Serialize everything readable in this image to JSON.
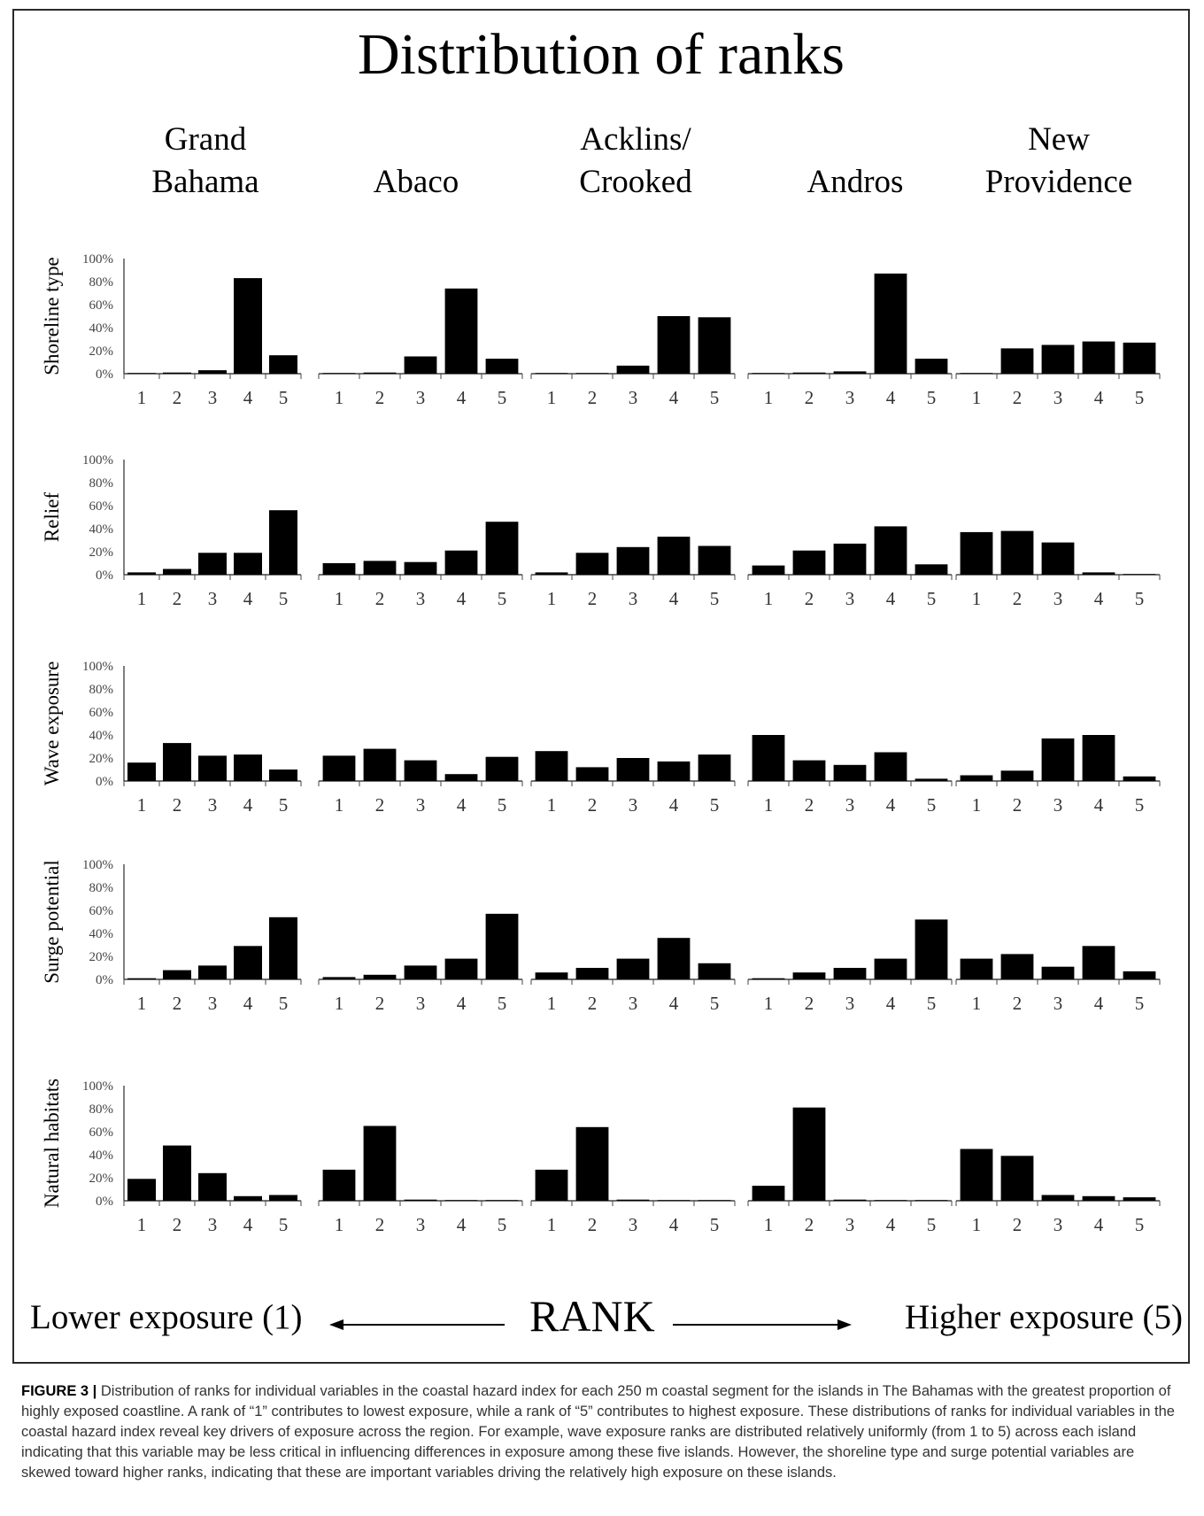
{
  "title": "Distribution of ranks",
  "footer": {
    "lower": "Lower exposure (1)",
    "rank": "RANK",
    "higher": "Higher exposure (5)"
  },
  "caption": {
    "label": "FIGURE 3 |",
    "text": "Distribution of ranks for individual variables in the coastal hazard index for each 250 m coastal segment for the islands in The Bahamas with the greatest proportion of highly exposed coastline. A rank of “1” contributes to lowest exposure, while a rank of “5” contributes to highest exposure. These distributions of ranks for individual variables in the coastal hazard index reveal key drivers of exposure across the region. For example, wave exposure ranks are distributed relatively uniformly (from 1 to 5) across each island indicating that this variable may be less critical in influencing differences in exposure among these five islands. However, the shoreline type and surge potential variables are skewed toward higher ranks, indicating that these are important variables driving the relatively high exposure on these islands."
  },
  "chart_data": {
    "type": "bar",
    "islands": [
      {
        "line1": "Grand",
        "line2": "Bahama"
      },
      {
        "line1": "",
        "line2": "Abaco"
      },
      {
        "line1": "Acklins/",
        "line2": "Crooked"
      },
      {
        "line1": "",
        "line2": "Andros"
      },
      {
        "line1": "New",
        "line2": "Providence"
      }
    ],
    "categories": [
      "1",
      "2",
      "3",
      "4",
      "5"
    ],
    "yticks": [
      "100%",
      "80%",
      "60%",
      "40%",
      "20%",
      "0%"
    ],
    "ylim": [
      0,
      100
    ],
    "xlabel": "RANK",
    "variables": [
      {
        "name": "Shoreline type",
        "values": [
          [
            0,
            1,
            3,
            83,
            16
          ],
          [
            0,
            1,
            15,
            74,
            13
          ],
          [
            0,
            0,
            7,
            50,
            49
          ],
          [
            0,
            1,
            2,
            87,
            13
          ],
          [
            0,
            22,
            25,
            28,
            27
          ]
        ]
      },
      {
        "name": "Relief",
        "values": [
          [
            2,
            5,
            19,
            19,
            56
          ],
          [
            10,
            12,
            11,
            21,
            46
          ],
          [
            2,
            19,
            24,
            33,
            25
          ],
          [
            8,
            21,
            27,
            42,
            9
          ],
          [
            37,
            38,
            28,
            2,
            0
          ]
        ]
      },
      {
        "name": "Wave exposure",
        "values": [
          [
            16,
            33,
            22,
            23,
            10
          ],
          [
            22,
            28,
            18,
            6,
            21
          ],
          [
            26,
            12,
            20,
            17,
            23
          ],
          [
            40,
            18,
            14,
            25,
            2
          ],
          [
            5,
            9,
            37,
            40,
            4
          ]
        ]
      },
      {
        "name": "Surge potential",
        "values": [
          [
            1,
            8,
            12,
            29,
            54
          ],
          [
            2,
            4,
            12,
            18,
            57
          ],
          [
            6,
            10,
            18,
            36,
            14
          ],
          [
            1,
            6,
            10,
            18,
            52
          ],
          [
            18,
            22,
            11,
            29,
            7
          ]
        ]
      },
      {
        "name": "Natural habitats",
        "values": [
          [
            19,
            48,
            24,
            4,
            5
          ],
          [
            27,
            65,
            1,
            0,
            0
          ],
          [
            27,
            64,
            1,
            0,
            0
          ],
          [
            13,
            81,
            1,
            0,
            0
          ],
          [
            45,
            39,
            5,
            4,
            3
          ]
        ]
      }
    ]
  }
}
